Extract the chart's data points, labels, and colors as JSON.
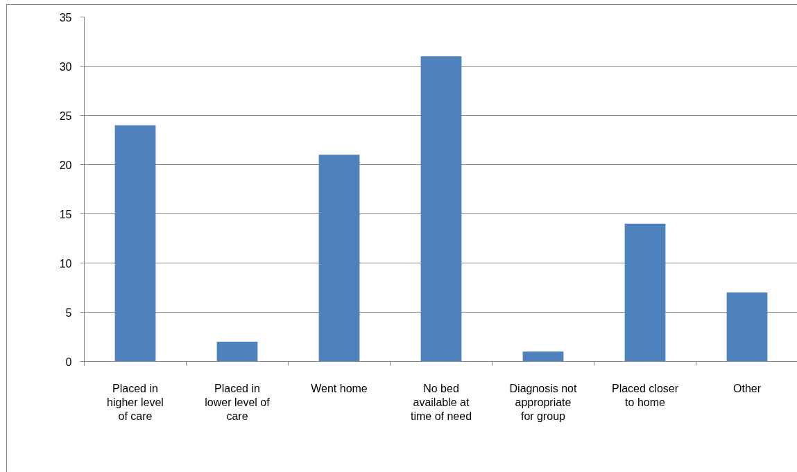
{
  "chart_data": {
    "type": "bar",
    "categories": [
      "Placed in higher level of care",
      "Placed in lower level of care",
      "Went home",
      "No bed available at time of need",
      "Diagnosis not appropriate for group",
      "Placed closer to home",
      "Other"
    ],
    "values": [
      24,
      2,
      21,
      31,
      1,
      14,
      7
    ],
    "color": "#4f81bd",
    "ylim": [
      0,
      35
    ],
    "yticks": [
      0,
      5,
      10,
      15,
      20,
      25,
      30,
      35
    ],
    "grid": "y"
  }
}
